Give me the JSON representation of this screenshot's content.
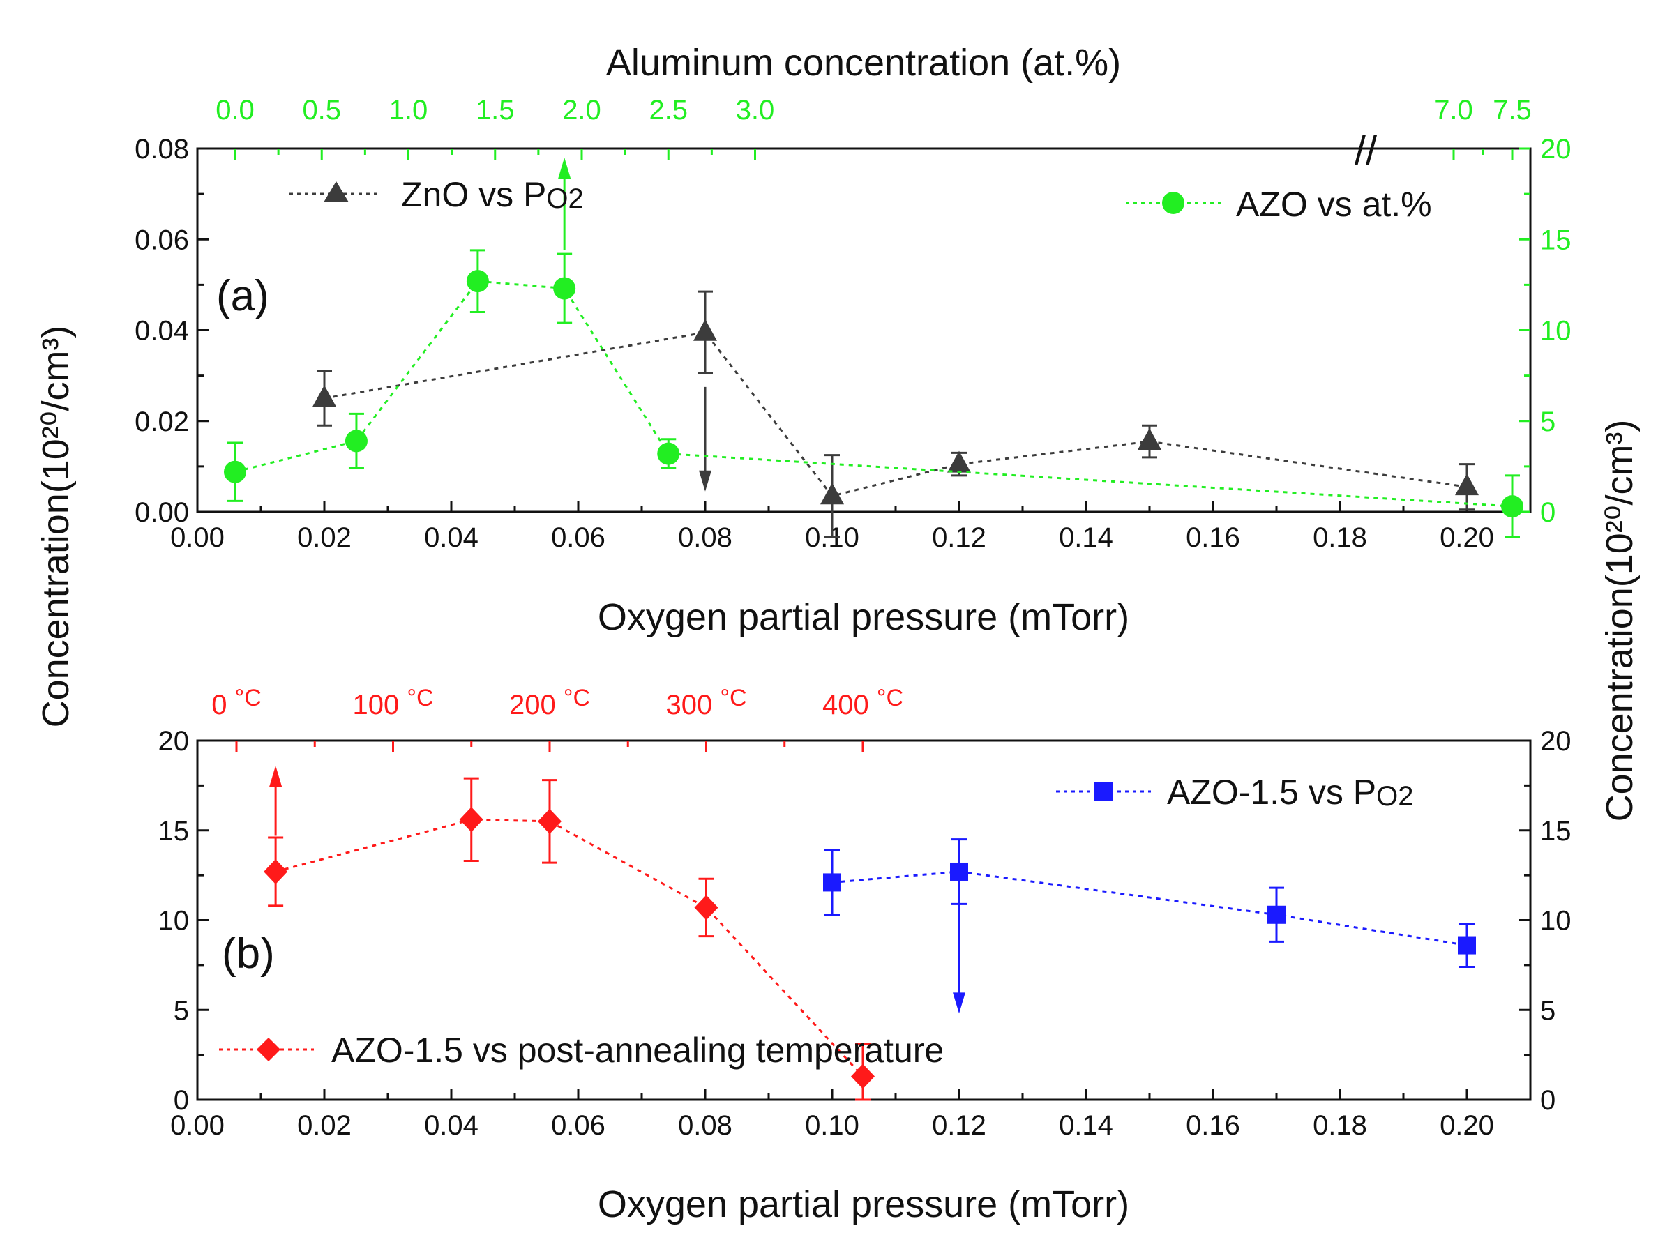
{
  "colors": {
    "zno": "#3c3c3c",
    "azo_at": "#22ee22",
    "azo_po2": "#1a1aff",
    "azo_temp": "#ff1a1a",
    "axis": "#111111"
  },
  "chart_data": [
    {
      "panel": "a",
      "type": "scatter",
      "panel_label": "(a)",
      "xlabel": "Oxygen partial pressure (mTorr)",
      "top_xlabel": "Aluminum concentration (at.%)",
      "ylabel": "Concentration(10²⁰/cm³)",
      "right_ylabel": "Concentration(10²⁰/cm³)",
      "xlim": [
        0.0,
        0.21
      ],
      "ylim_left": [
        0.0,
        0.08
      ],
      "ylim_right": [
        0,
        20
      ],
      "x_ticks": [
        "0.00",
        "0.02",
        "0.04",
        "0.06",
        "0.08",
        "0.10",
        "0.12",
        "0.14",
        "0.16",
        "0.18",
        "0.20"
      ],
      "y_left_ticks": [
        "0.00",
        "0.02",
        "0.04",
        "0.06",
        "0.08"
      ],
      "y_right_ticks": [
        "0",
        "5",
        "10",
        "15",
        "20"
      ],
      "top_ticks": [
        "0.0",
        "0.5",
        "1.0",
        "1.5",
        "2.0",
        "2.5",
        "3.0",
        "7.0",
        "7.5"
      ],
      "axis_break": "//",
      "series": [
        {
          "name": "ZnO vs PO2",
          "legend_main": "ZnO vs P",
          "legend_sub": "O2",
          "marker": "triangle",
          "axis": "left",
          "x": [
            0.02,
            0.08,
            0.1,
            0.12,
            0.15,
            0.2
          ],
          "y": [
            0.025,
            0.0395,
            0.0035,
            0.0105,
            0.0155,
            0.0055
          ],
          "err": [
            0.006,
            0.009,
            0.009,
            0.0025,
            0.0035,
            0.005
          ],
          "arrow": {
            "x": 0.08,
            "direction": "down",
            "from": 0.0275,
            "to": 0.0045
          }
        },
        {
          "name": "AZO vs at.%",
          "legend_main": "AZO vs at.%",
          "marker": "circle",
          "axis": "right",
          "at_percent": [
            0.0,
            0.7,
            1.4,
            1.9,
            2.5,
            7.5
          ],
          "y": [
            2.2,
            3.9,
            12.7,
            12.3,
            3.2,
            0.3
          ],
          "err": [
            1.6,
            1.5,
            1.7,
            1.9,
            0.8,
            1.7
          ],
          "arrow": {
            "at_percent": 1.9,
            "direction": "up",
            "from": 14.4,
            "to": 19.5
          }
        }
      ]
    },
    {
      "panel": "b",
      "type": "scatter",
      "panel_label": "(b)",
      "xlabel": "Oxygen partial pressure (mTorr)",
      "top_xlabel": "",
      "ylabel": "Concentration(10²⁰/cm³)",
      "right_ylabel": "Concentration(10²⁰/cm³)",
      "xlim": [
        0.0,
        0.21
      ],
      "ylim": [
        0,
        20
      ],
      "x_ticks": [
        "0.00",
        "0.02",
        "0.04",
        "0.06",
        "0.08",
        "0.10",
        "0.12",
        "0.14",
        "0.16",
        "0.18",
        "0.20"
      ],
      "y_ticks": [
        "0",
        "5",
        "10",
        "15",
        "20"
      ],
      "top_ticks": [
        {
          "num": "0",
          "unit": "°C",
          "t": 0
        },
        {
          "num": "100",
          "unit": "°C",
          "t": 100
        },
        {
          "num": "200",
          "unit": "°C",
          "t": 200
        },
        {
          "num": "300",
          "unit": "°C",
          "t": 300
        },
        {
          "num": "400",
          "unit": "°C",
          "t": 400
        }
      ],
      "series": [
        {
          "name": "AZO-1.5 vs PO2",
          "legend_main": "AZO-1.5 vs P",
          "legend_sub": "O2",
          "marker": "square",
          "x": [
            0.1,
            0.12,
            0.17,
            0.2
          ],
          "y": [
            12.1,
            12.7,
            10.3,
            8.6
          ],
          "err": [
            1.8,
            1.8,
            1.5,
            1.2
          ],
          "arrow": {
            "x": 0.12,
            "direction": "down",
            "from": 10.9,
            "to": 4.8
          }
        },
        {
          "name": "AZO-1.5 vs post-annealing temperature",
          "legend_main": "AZO-1.5 vs post-annealing temperature",
          "marker": "diamond",
          "temperature_c": [
            25,
            150,
            200,
            300,
            400
          ],
          "y": [
            12.7,
            15.6,
            15.5,
            10.7,
            1.3
          ],
          "err": [
            1.9,
            2.3,
            2.3,
            1.6,
            1.8
          ],
          "arrow": {
            "temperature_c": 25,
            "direction": "up",
            "from": 14.7,
            "to": 18.6
          }
        }
      ]
    }
  ]
}
